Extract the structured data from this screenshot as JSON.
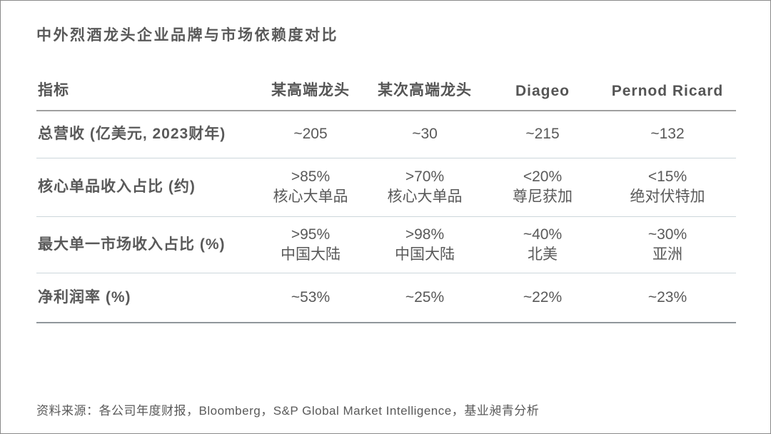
{
  "chart_data": {
    "type": "table",
    "title": "中外烈酒龙头企业品牌与市场依赖度对比",
    "columns": [
      "指标",
      "某高端龙头",
      "某次高端龙头",
      "Diageo",
      "Pernod Ricard"
    ],
    "rows": [
      {
        "label": "总营收 (亿美元, 2023财年)",
        "cells": [
          [
            "~205"
          ],
          [
            "~30"
          ],
          [
            "~215"
          ],
          [
            "~132"
          ]
        ]
      },
      {
        "label": "核心单品收入占比 (约)",
        "cells": [
          [
            ">85%",
            "核心大单品"
          ],
          [
            ">70%",
            "核心大单品"
          ],
          [
            "<20%",
            "尊尼获加"
          ],
          [
            "<15%",
            "绝对伏特加"
          ]
        ]
      },
      {
        "label": "最大单一市场收入占比 (%)",
        "cells": [
          [
            ">95%",
            "中国大陆"
          ],
          [
            ">98%",
            "中国大陆"
          ],
          [
            "~40%",
            "北美"
          ],
          [
            "~30%",
            "亚洲"
          ]
        ]
      },
      {
        "label": "净利润率 (%)",
        "cells": [
          [
            "~53%"
          ],
          [
            "~25%"
          ],
          [
            "~22%"
          ],
          [
            "~23%"
          ]
        ]
      }
    ],
    "source": "资料来源：各公司年度财报，Bloomberg，S&P Global Market Intelligence，基业昶青分析",
    "layout": {
      "grid": "horizontal-rules-only",
      "legend_position": "none"
    }
  },
  "colors": {
    "text": "#595959",
    "header_rule": "#a0a0a0",
    "row_rule": "#ccd6db",
    "bottom_rule": "#90979b",
    "frame": "#8a8a8a",
    "background": "#ffffff"
  }
}
